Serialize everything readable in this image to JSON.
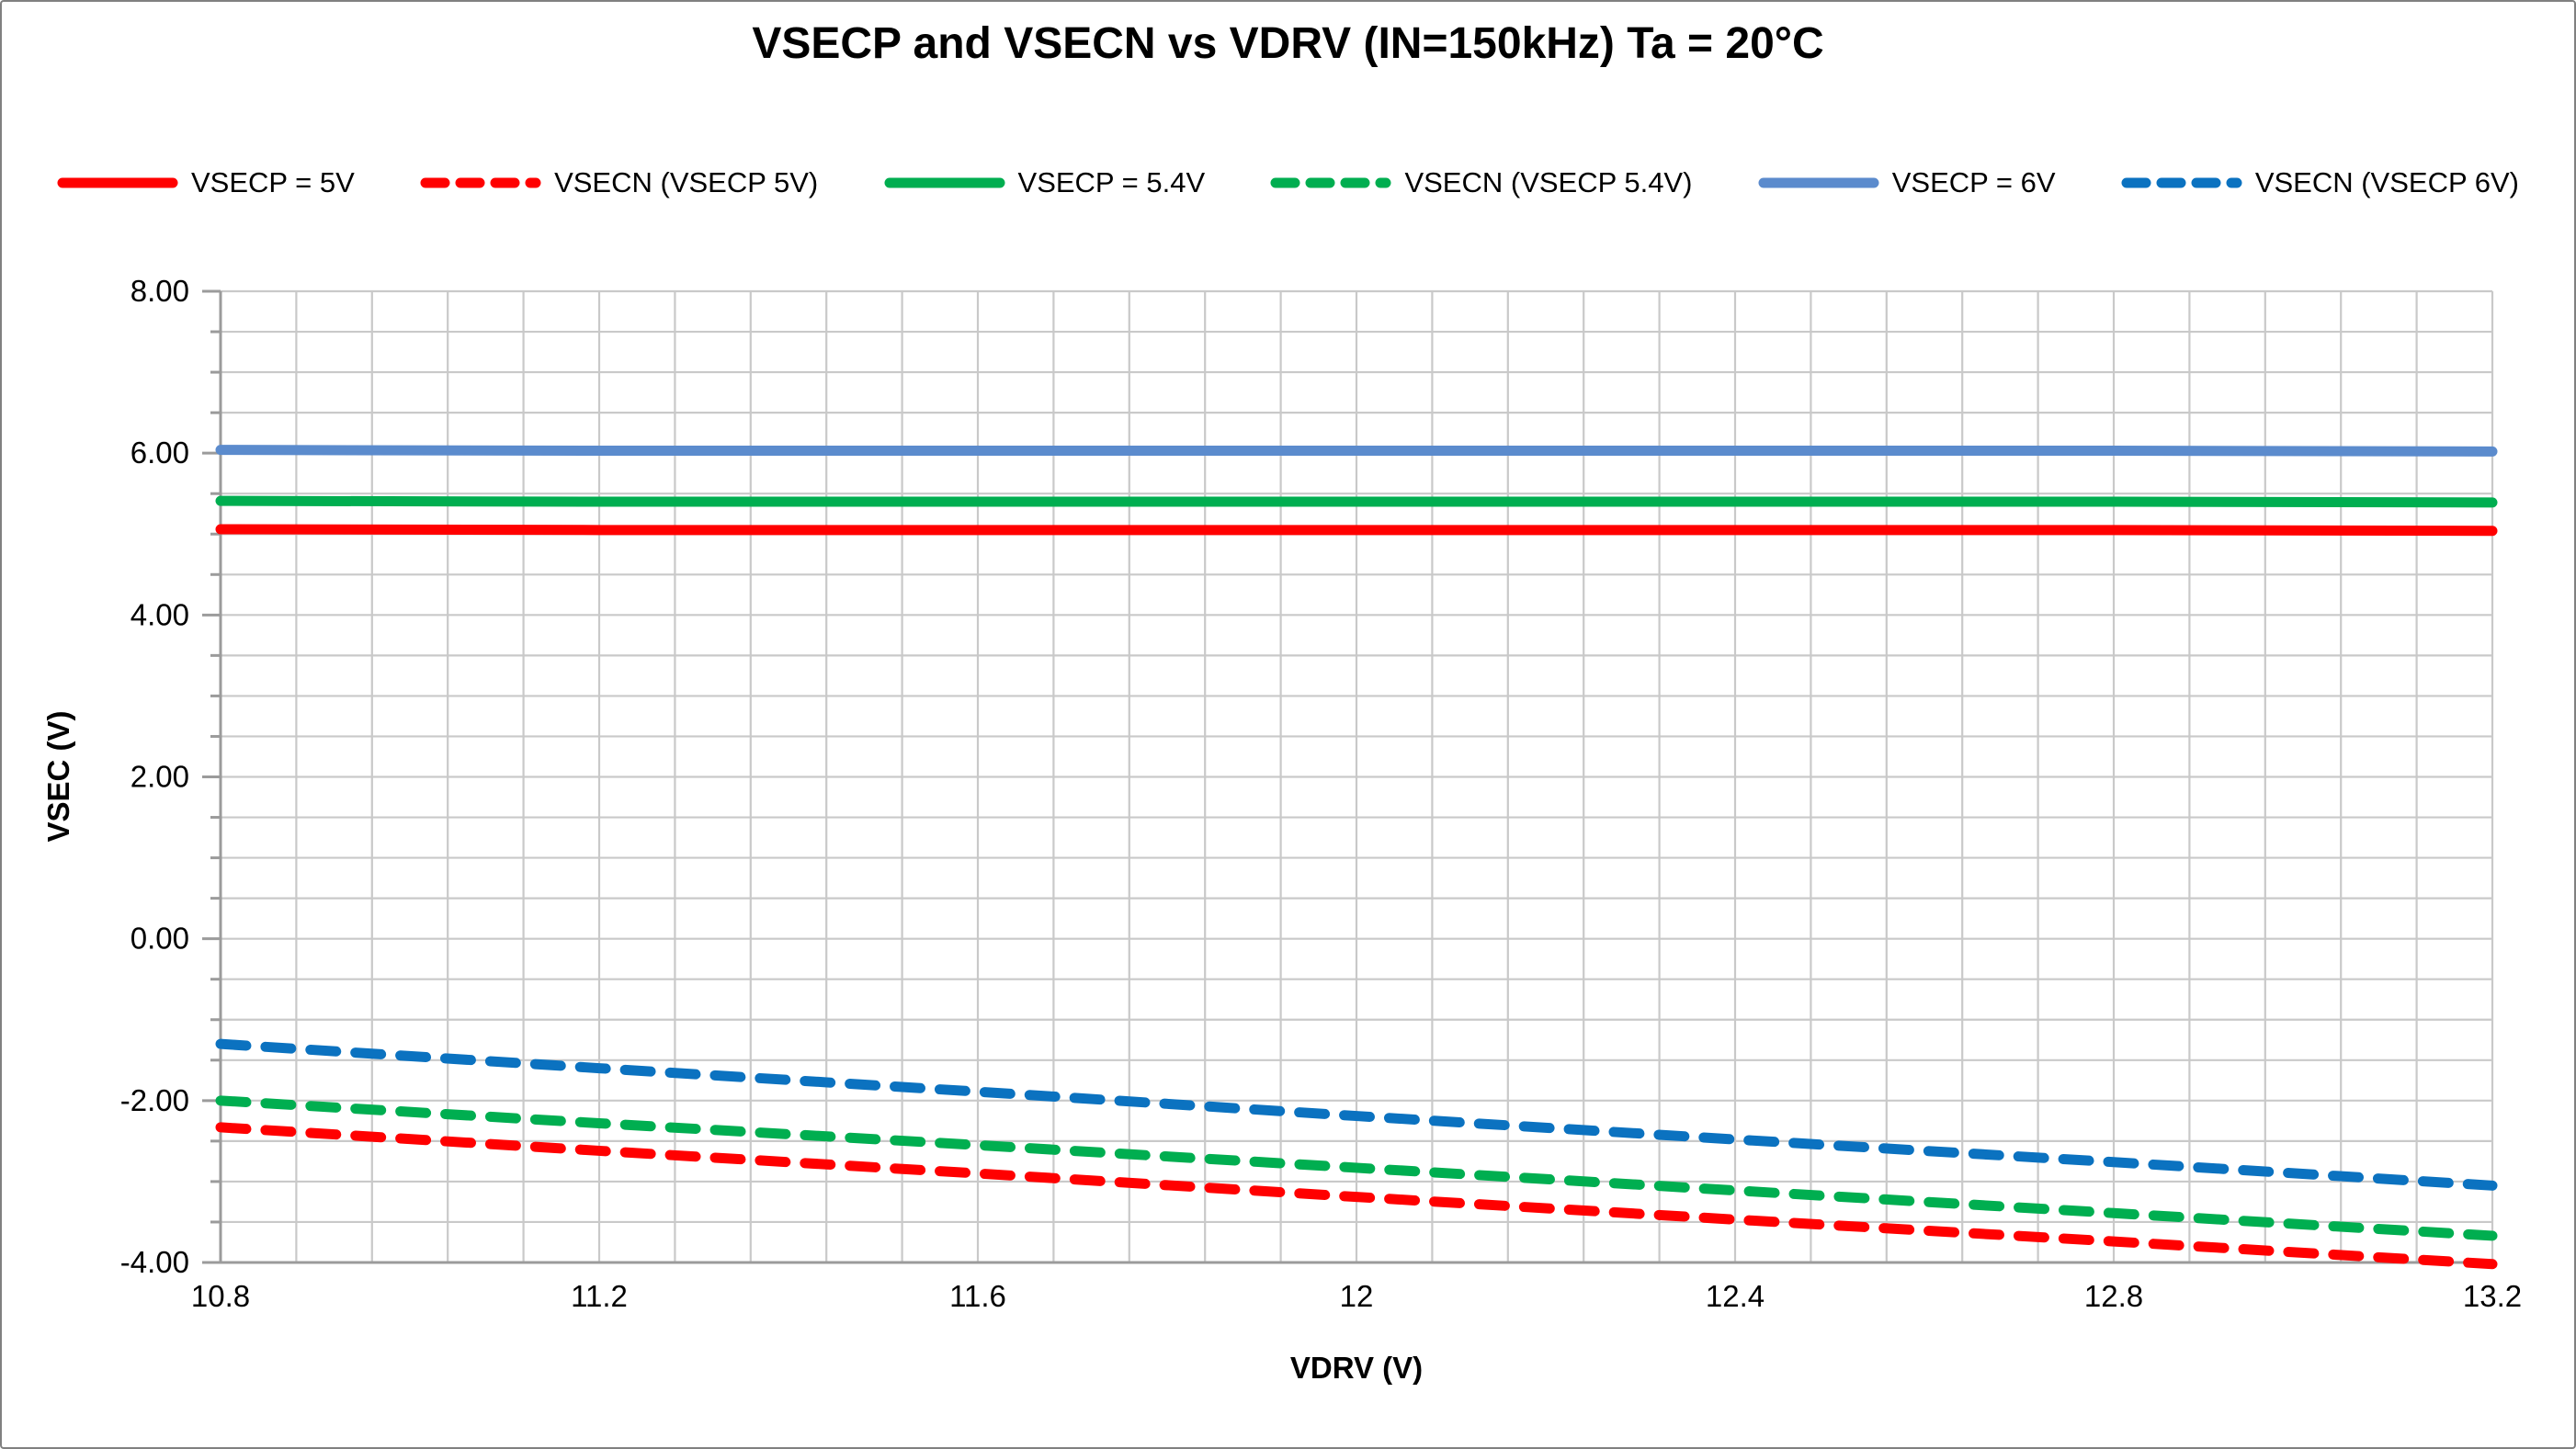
{
  "chart_data": {
    "type": "line",
    "title": "VSECP and VSECN vs VDRV (IN=150kHz) Ta = 20°C",
    "xlabel": "VDRV (V)",
    "ylabel": "VSEC (V)",
    "xlim": [
      10.8,
      13.2
    ],
    "ylim": [
      -4.0,
      8.0
    ],
    "x_major_step": 0.4,
    "x_minor_step": 0.08,
    "y_major_step": 2.0,
    "y_minor_step": 0.5,
    "x_tick_labels": [
      "10.8",
      "11.2",
      "11.6",
      "12",
      "12.4",
      "12.8",
      "13.2"
    ],
    "y_tick_labels": [
      "8.00",
      "6.00",
      "4.00",
      "2.00",
      "0.00",
      "-2.00",
      "-4.00"
    ],
    "grid": "minor",
    "legend_position": "top",
    "x": [
      10.8,
      11.2,
      11.6,
      12.0,
      12.4,
      12.8,
      13.2
    ],
    "series": [
      {
        "name": "VSECP = 5V",
        "color": "#FF0000",
        "style": "solid",
        "values": [
          5.06,
          5.05,
          5.05,
          5.05,
          5.05,
          5.05,
          5.04
        ]
      },
      {
        "name": "VSECN (VSECP 5V)",
        "color": "#FF0000",
        "style": "dashed",
        "values": [
          -2.33,
          -2.62,
          -2.9,
          -3.19,
          -3.47,
          -3.74,
          -4.02
        ]
      },
      {
        "name": "VSECP = 5.4V",
        "color": "#00AE50",
        "style": "solid",
        "values": [
          5.41,
          5.4,
          5.4,
          5.4,
          5.4,
          5.4,
          5.39
        ]
      },
      {
        "name": "VSECN (VSECP 5.4V)",
        "color": "#00AE50",
        "style": "dashed",
        "values": [
          -2.0,
          -2.28,
          -2.55,
          -2.83,
          -3.11,
          -3.39,
          -3.67
        ]
      },
      {
        "name": "VSECP = 6V",
        "color": "#5B8BCD",
        "style": "solid",
        "values": [
          6.04,
          6.03,
          6.03,
          6.03,
          6.03,
          6.03,
          6.02
        ]
      },
      {
        "name": "VSECN (VSECP 6V)",
        "color": "#0B72C0",
        "style": "dashed",
        "values": [
          -1.3,
          -1.6,
          -1.89,
          -2.19,
          -2.48,
          -2.76,
          -3.05
        ]
      }
    ]
  },
  "style_colors": {
    "grid": "#C9C9C9",
    "axis": "#9B9B9B",
    "border": "#808080",
    "text": "#000000"
  }
}
